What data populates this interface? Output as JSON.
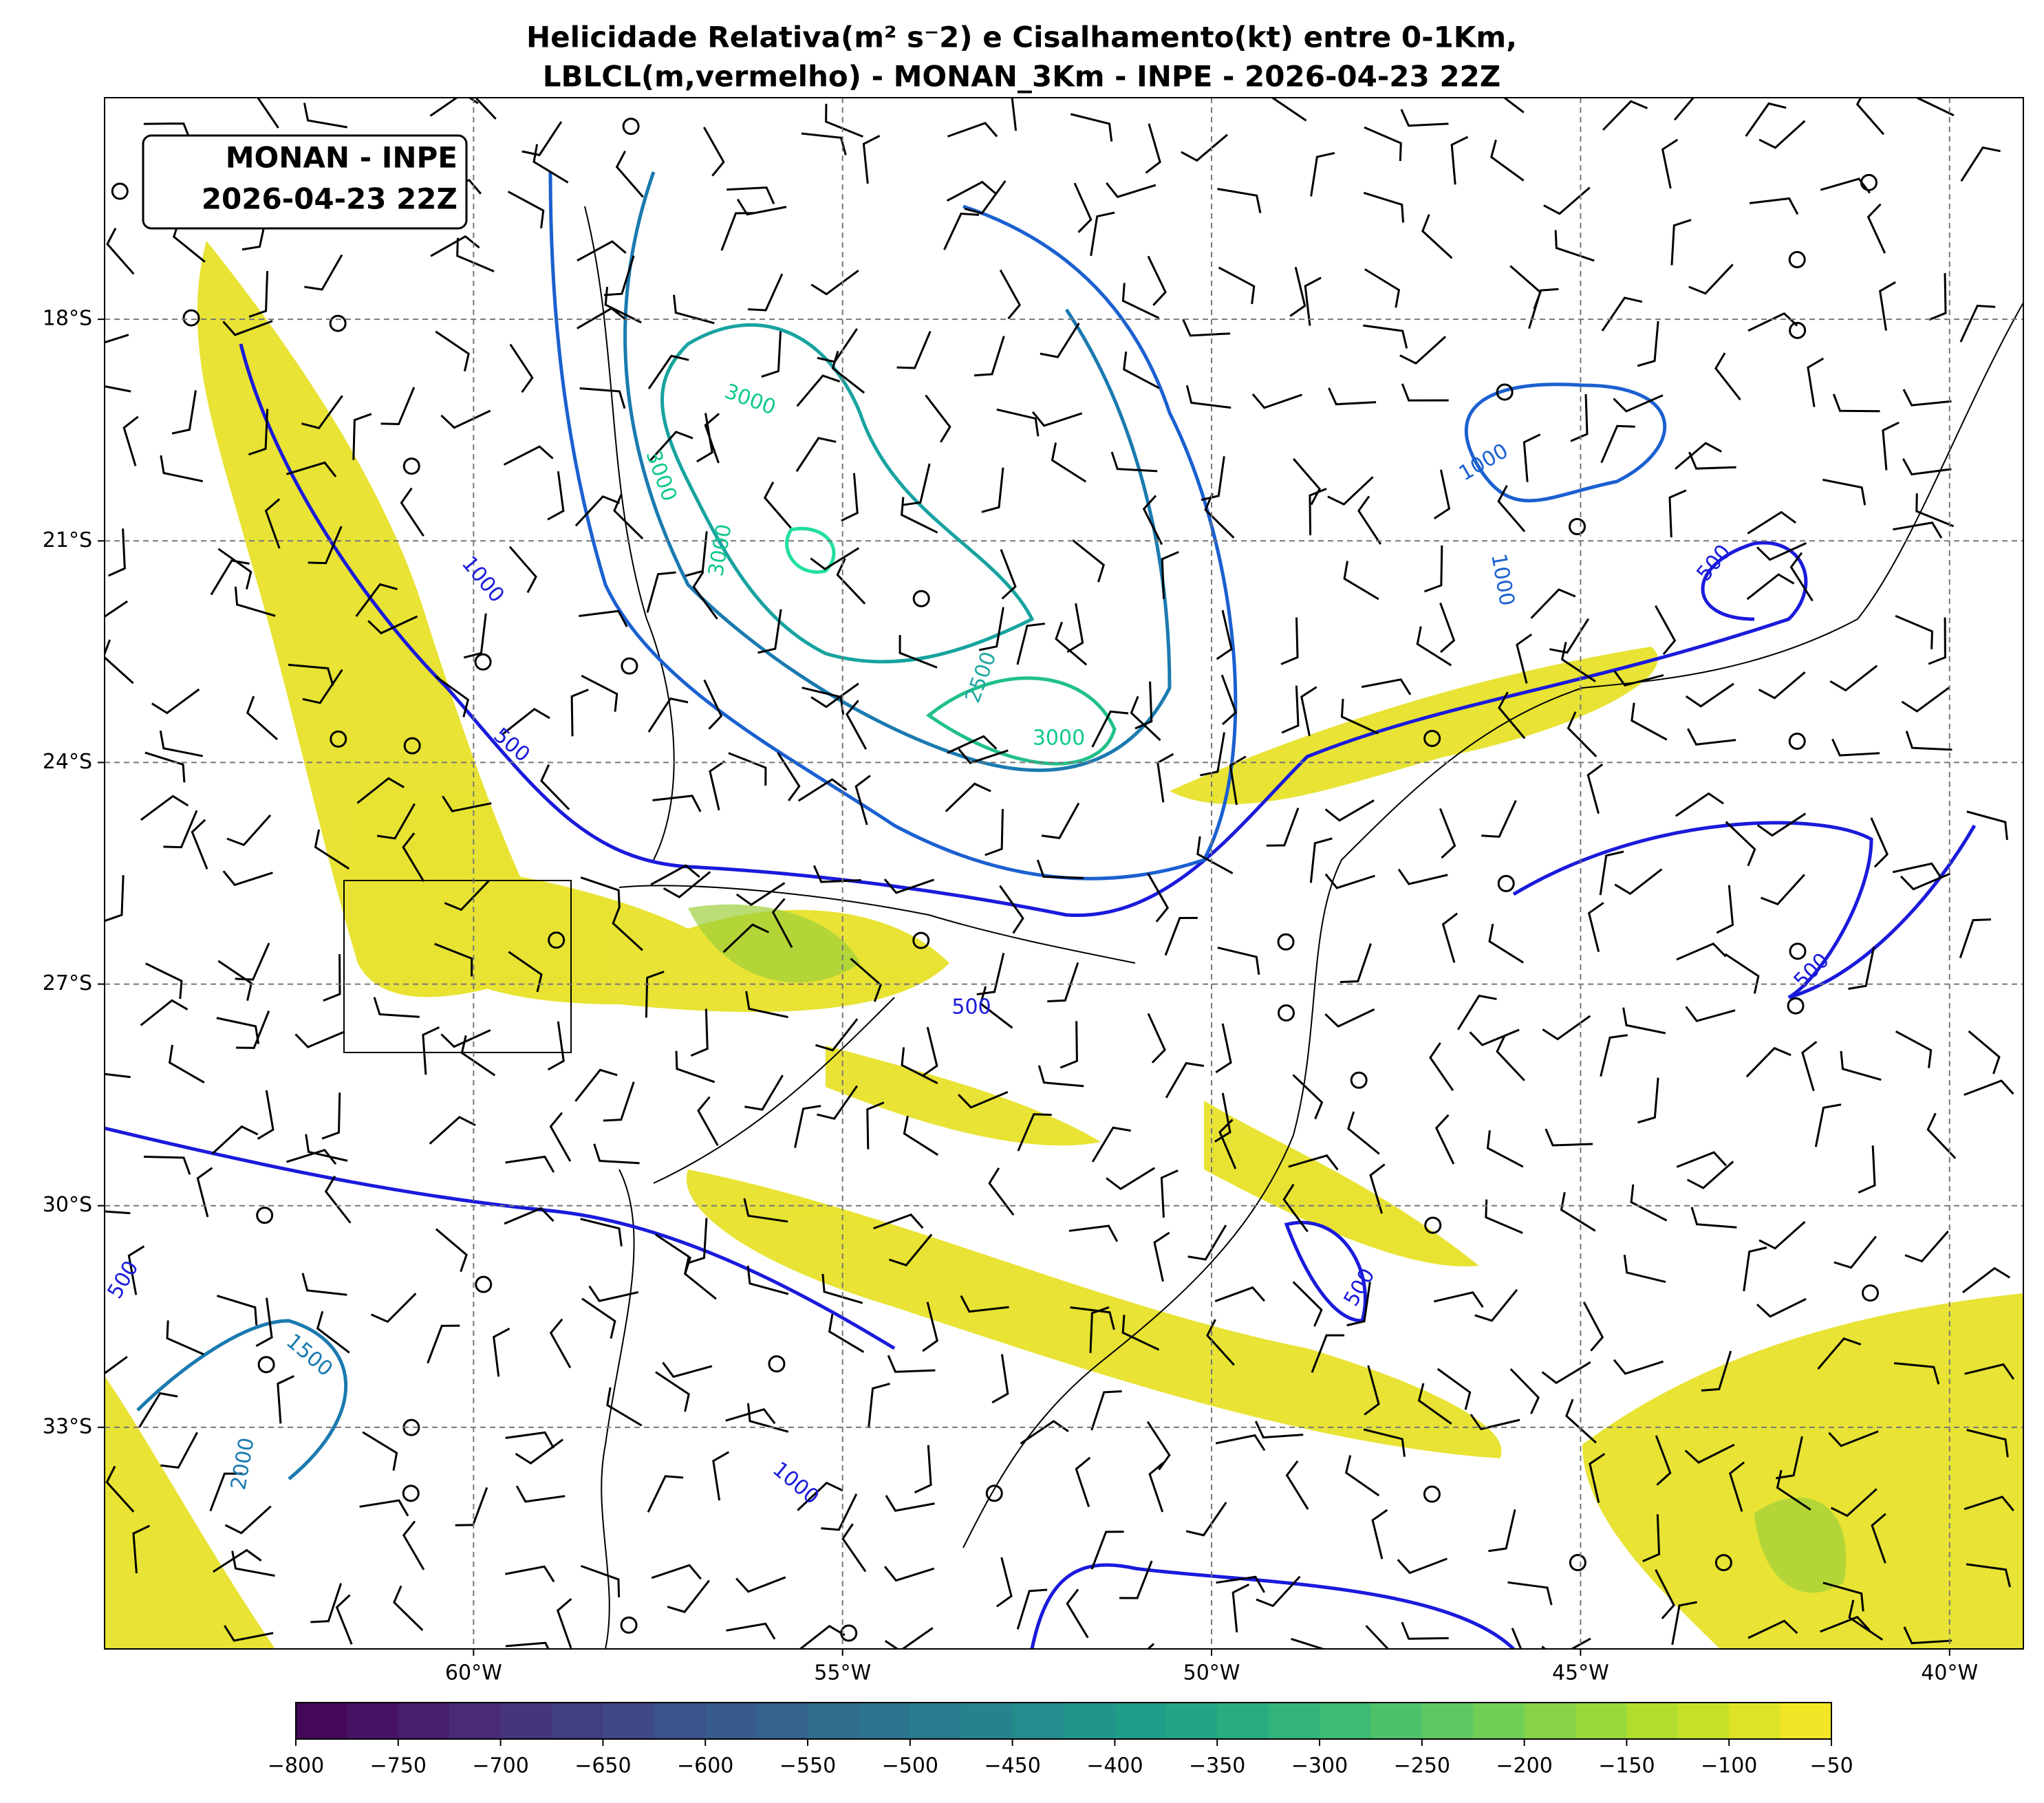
{
  "chart_data": {
    "type": "map",
    "title": [
      "Helicidade Relativa(m² s⁻2) e Cisalhamento(kt) entre 0-1Km,",
      "LBLCL(m,vermelho) - MONAN_3Km - INPE - 2026-04-23 22Z"
    ],
    "annotation": [
      "MONAN - INPE",
      "2026-04-23 22Z"
    ],
    "xlim": [
      -65,
      -39
    ],
    "ylim": [
      -36,
      -15
    ],
    "xticks": [
      {
        "value": -60,
        "label": "60°W"
      },
      {
        "value": -55,
        "label": "55°W"
      },
      {
        "value": -50,
        "label": "50°W"
      },
      {
        "value": -45,
        "label": "45°W"
      },
      {
        "value": -40,
        "label": "40°W"
      }
    ],
    "yticks": [
      {
        "value": -18,
        "label": "18°S"
      },
      {
        "value": -21,
        "label": "21°S"
      },
      {
        "value": -24,
        "label": "24°S"
      },
      {
        "value": -27,
        "label": "27°S"
      },
      {
        "value": -30,
        "label": "30°S"
      },
      {
        "value": -33,
        "label": "33°S"
      }
    ],
    "grid": true,
    "contour_labels": [
      3000,
      3000,
      3000,
      3000,
      2500,
      1000,
      500,
      1000,
      1000,
      500,
      500,
      500,
      500,
      1500,
      2000,
      1000,
      500
    ],
    "colorbar": {
      "colormap": "viridis",
      "lim": [
        -800,
        -50
      ],
      "ticks": [
        {
          "value": -800,
          "label": "−800"
        },
        {
          "value": -750,
          "label": "−750"
        },
        {
          "value": -700,
          "label": "−700"
        },
        {
          "value": -650,
          "label": "−650"
        },
        {
          "value": -600,
          "label": "−600"
        },
        {
          "value": -550,
          "label": "−550"
        },
        {
          "value": -500,
          "label": "−500"
        },
        {
          "value": -450,
          "label": "−450"
        },
        {
          "value": -400,
          "label": "−400"
        },
        {
          "value": -350,
          "label": "−350"
        },
        {
          "value": -300,
          "label": "−300"
        },
        {
          "value": -250,
          "label": "−250"
        },
        {
          "value": -200,
          "label": "−200"
        },
        {
          "value": -150,
          "label": "−150"
        },
        {
          "value": -100,
          "label": "−100"
        },
        {
          "value": -50,
          "label": "−50"
        }
      ]
    }
  }
}
